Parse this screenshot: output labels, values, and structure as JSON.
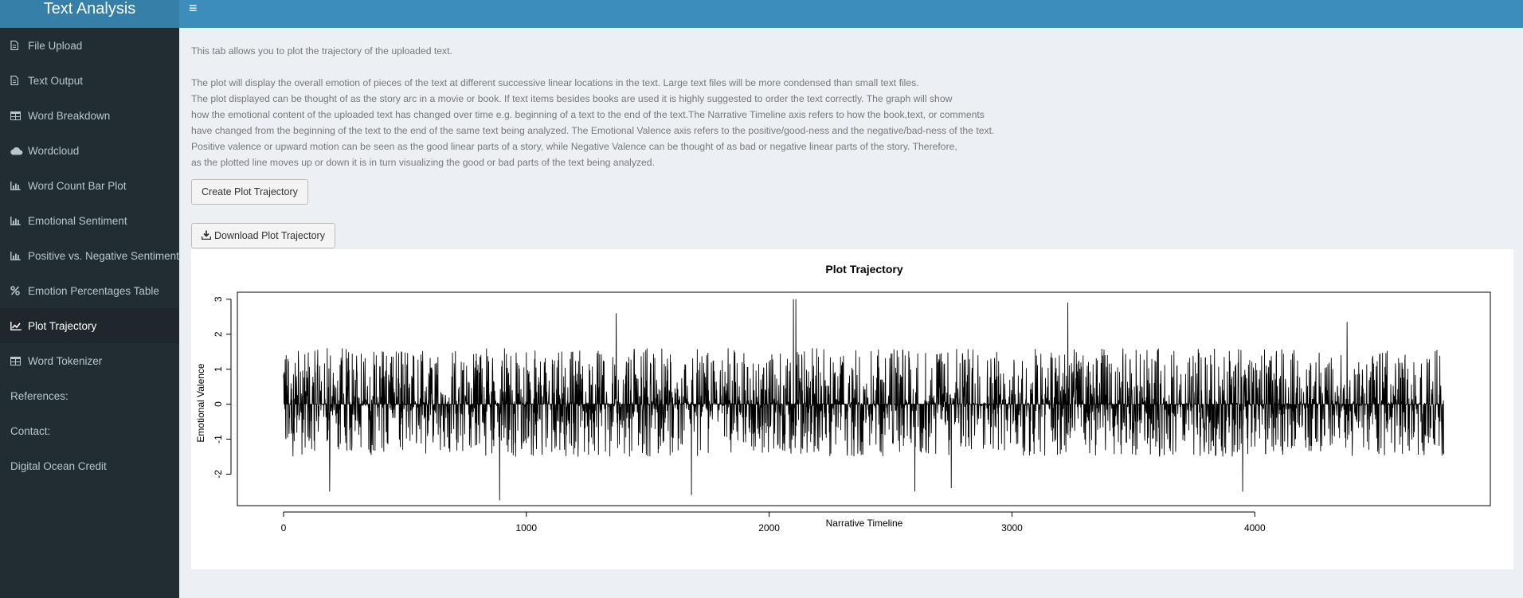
{
  "app": {
    "title": "Text Analysis"
  },
  "header": {
    "toggle_glyph": "≡"
  },
  "sidebar": {
    "items": [
      {
        "label": "File Upload",
        "icon": "file-icon"
      },
      {
        "label": "Text Output",
        "icon": "file-icon"
      },
      {
        "label": "Word Breakdown",
        "icon": "table-icon"
      },
      {
        "label": "Wordcloud",
        "icon": "cloud-icon"
      },
      {
        "label": "Word Count Bar Plot",
        "icon": "bar-chart-icon"
      },
      {
        "label": "Emotional Sentiment",
        "icon": "bar-chart-icon"
      },
      {
        "label": "Positive vs. Negative Sentiment",
        "icon": "bar-chart-icon"
      },
      {
        "label": "Emotion Percentages Table",
        "icon": "percent-icon"
      },
      {
        "label": "Plot Trajectory",
        "icon": "line-chart-icon",
        "active": true
      },
      {
        "label": "Word Tokenizer",
        "icon": "table-icon"
      },
      {
        "label": "References:"
      },
      {
        "label": "Contact:"
      },
      {
        "label": "Digital Ocean Credit"
      }
    ]
  },
  "main": {
    "intro": "This tab allows you to plot the trajectory of the uploaded text.",
    "description_lines": [
      "The plot will display the overall emotion of pieces of the text at different successive linear locations in the text. Large text files will be more condensed than small text files.",
      "The plot displayed can be thought of as the story arc in a movie or book. If text items besides books are used it is highly suggested to order the text correctly. The graph will show",
      "how the emotional content of the uploaded text has changed over time e.g. beginning of a text to the end of the text.The Narrative Timeline axis refers to how the book,text, or comments",
      "have changed from the beginning of the text to the end of the same text being analyzed. The Emotional Valence axis refers to the positive/good-ness and the negative/bad-ness of the text.",
      "Positive valence or upward motion can be seen as the good linear parts of a story, while Negative Valence can be thought of as bad or negative linear parts of the story. Therefore,",
      "as the plotted line moves up or down it is in turn visualizing the good or bad parts of the text being analyzed."
    ],
    "create_button": "Create Plot Trajectory",
    "download_button": "Download Plot Trajectory",
    "download_icon": "download-icon"
  },
  "chart_data": {
    "type": "line",
    "title": "Plot Trajectory",
    "xlabel": "Narrative Timeline",
    "ylabel": "Emotional Valence",
    "xlim": [
      -190,
      4970
    ],
    "ylim": [
      -2.9,
      3.2
    ],
    "x_ticks": [
      0,
      1000,
      2000,
      3000,
      4000
    ],
    "x_tick_labels": [
      "0",
      "1000",
      "2000",
      "3000",
      "4000"
    ],
    "y_ticks": [
      -2,
      -1,
      0,
      1,
      2,
      3
    ],
    "y_tick_labels": [
      "-2",
      "-1",
      "0",
      "1",
      "2",
      "3"
    ],
    "grid": false,
    "line_color": "#000000",
    "n_points": 4780,
    "x_start": 0,
    "x_step": 1,
    "keypoints": [
      [
        0,
        0.75
      ],
      [
        10,
        -1.0
      ],
      [
        180,
        1.6
      ],
      [
        190,
        -2.5
      ],
      [
        890,
        -2.75
      ],
      [
        1370,
        2.6
      ],
      [
        1680,
        -2.6
      ],
      [
        2100,
        3.0
      ],
      [
        2110,
        3.0
      ],
      [
        2600,
        -2.5
      ],
      [
        2750,
        -2.4
      ],
      [
        3230,
        2.9
      ],
      [
        3950,
        -2.5
      ],
      [
        4380,
        2.35
      ],
      [
        4750,
        1.55
      ]
    ],
    "typical_range": [
      -1.5,
      1.6
    ]
  }
}
